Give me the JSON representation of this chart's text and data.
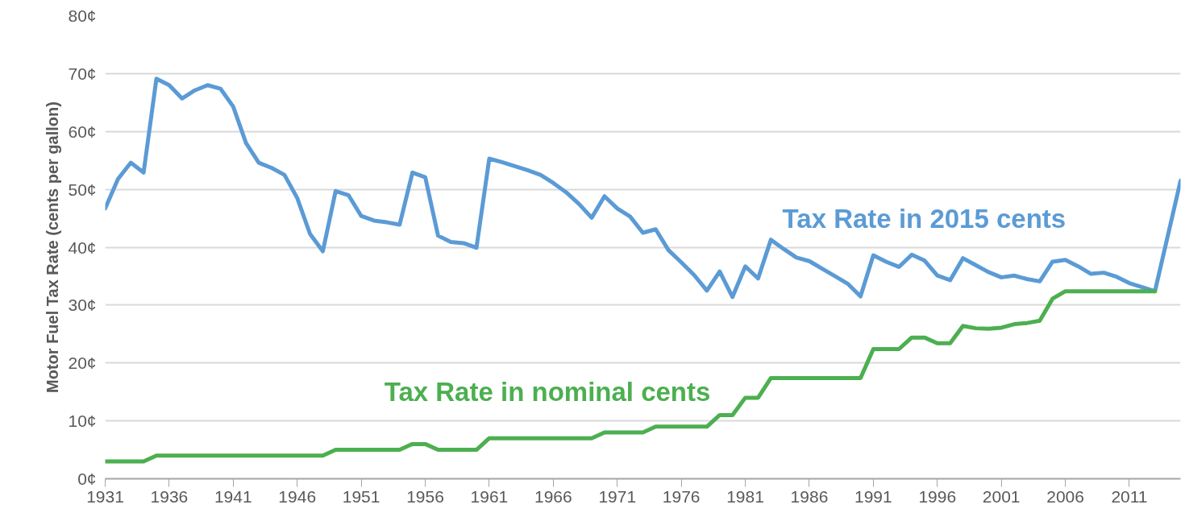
{
  "chart_data": {
    "type": "line",
    "ylabel": "Motor Fuel Tax Rate (cents per gallon)",
    "xlim": [
      1931,
      2015
    ],
    "xticks": [
      1931,
      1936,
      1941,
      1946,
      1951,
      1956,
      1961,
      1966,
      1971,
      1976,
      1981,
      1986,
      1991,
      1996,
      2001,
      2006,
      2011
    ],
    "ylim": [
      0,
      80
    ],
    "yticks": [
      {
        "value": 0,
        "label": "0¢"
      },
      {
        "value": 10,
        "label": "10¢"
      },
      {
        "value": 20,
        "label": "20¢"
      },
      {
        "value": 30,
        "label": "30¢"
      },
      {
        "value": 40,
        "label": "40¢"
      },
      {
        "value": 50,
        "label": "50¢"
      },
      {
        "value": 60,
        "label": "60¢"
      },
      {
        "value": 70,
        "label": "70¢"
      },
      {
        "value": 80,
        "label": "80¢"
      }
    ],
    "grid": "y",
    "legend": false,
    "marker": "none",
    "line_style": "solid",
    "series": [
      {
        "name": "Tax Rate in 2015 cents",
        "color": "#5b9bd5",
        "x": [
          1931,
          1932,
          1933,
          1934,
          1935,
          1936,
          1937,
          1938,
          1939,
          1940,
          1941,
          1942,
          1943,
          1944,
          1945,
          1946,
          1947,
          1948,
          1949,
          1950,
          1951,
          1952,
          1953,
          1954,
          1955,
          1956,
          1957,
          1958,
          1959,
          1960,
          1961,
          1962,
          1963,
          1964,
          1965,
          1966,
          1967,
          1968,
          1969,
          1970,
          1971,
          1972,
          1973,
          1974,
          1975,
          1976,
          1977,
          1978,
          1979,
          1980,
          1981,
          1982,
          1983,
          1984,
          1985,
          1986,
          1987,
          1988,
          1989,
          1990,
          1991,
          1992,
          1993,
          1994,
          1995,
          1996,
          1997,
          1998,
          1999,
          2000,
          2001,
          2002,
          2003,
          2004,
          2005,
          2006,
          2007,
          2008,
          2009,
          2010,
          2011,
          2012,
          2013,
          2015
        ],
        "values": [
          46.7,
          51.8,
          54.6,
          52.9,
          69.1,
          68.0,
          65.7,
          67.1,
          68.0,
          67.4,
          64.3,
          58.0,
          54.6,
          53.7,
          52.5,
          48.5,
          42.3,
          39.3,
          49.7,
          49.0,
          45.4,
          44.6,
          44.3,
          43.9,
          52.9,
          52.1,
          42.0,
          40.9,
          40.7,
          39.9,
          55.3,
          54.7,
          54.0,
          53.3,
          52.5,
          51.1,
          49.5,
          47.5,
          45.1,
          48.8,
          46.7,
          45.3,
          42.5,
          43.1,
          39.5,
          37.4,
          35.2,
          32.5,
          35.8,
          31.4,
          36.7,
          34.6,
          41.3,
          39.7,
          38.2,
          37.6,
          36.3,
          35.0,
          33.7,
          31.5,
          38.6,
          37.5,
          36.6,
          38.7,
          37.7,
          35.1,
          34.3,
          38.1,
          36.9,
          35.7,
          34.8,
          35.1,
          34.5,
          34.1,
          37.5,
          37.8,
          36.7,
          35.4,
          35.6,
          34.9,
          33.8,
          33.1,
          32.4,
          51.5
        ]
      },
      {
        "name": "Tax Rate in nominal cents",
        "color": "#4caf50",
        "x": [
          1931,
          1932,
          1933,
          1934,
          1935,
          1936,
          1937,
          1938,
          1939,
          1940,
          1941,
          1942,
          1943,
          1944,
          1945,
          1946,
          1947,
          1948,
          1949,
          1950,
          1951,
          1952,
          1953,
          1954,
          1955,
          1956,
          1957,
          1958,
          1959,
          1960,
          1961,
          1962,
          1963,
          1964,
          1965,
          1966,
          1967,
          1968,
          1969,
          1970,
          1971,
          1972,
          1973,
          1974,
          1975,
          1976,
          1977,
          1978,
          1979,
          1980,
          1981,
          1982,
          1983,
          1984,
          1985,
          1986,
          1987,
          1988,
          1989,
          1990,
          1991,
          1992,
          1993,
          1994,
          1995,
          1996,
          1997,
          1998,
          1999,
          2000,
          2001,
          2002,
          2003,
          2004,
          2005,
          2006,
          2007,
          2008,
          2009,
          2010,
          2011,
          2012,
          2013
        ],
        "values": [
          3,
          3,
          3,
          3,
          4,
          4,
          4,
          4,
          4,
          4,
          4,
          4,
          4,
          4,
          4,
          4,
          4,
          4,
          5,
          5,
          5,
          5,
          5,
          5,
          6,
          6,
          5,
          5,
          5,
          5,
          7,
          7,
          7,
          7,
          7,
          7,
          7,
          7,
          7,
          8,
          8,
          8,
          8,
          9,
          9,
          9,
          9,
          9,
          11,
          11,
          14,
          14,
          17.4,
          17.4,
          17.4,
          17.4,
          17.4,
          17.4,
          17.4,
          17.4,
          22.4,
          22.4,
          22.4,
          24.4,
          24.4,
          23.4,
          23.4,
          26.4,
          26.0,
          25.9,
          26.1,
          26.7,
          26.9,
          27.3,
          31.1,
          32.4,
          32.4,
          32.4,
          32.4,
          32.4,
          32.4,
          32.4,
          32.4
        ]
      }
    ]
  }
}
